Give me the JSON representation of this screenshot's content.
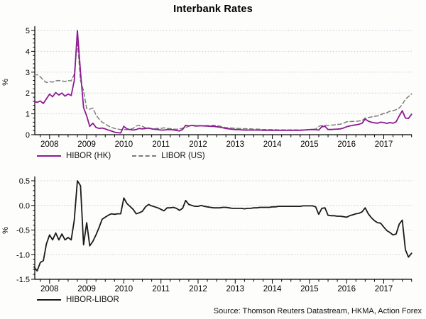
{
  "title": "Interbank Rates",
  "source": "Source: Thomson Reuters Datastream, HKMA, Action Forex",
  "colors": {
    "hibor": "#8C1B92",
    "libor": "#7d7d7d",
    "spread": "#1a1a1a",
    "grid": "#c7ccda",
    "axis": "#000000"
  },
  "legend_top": [
    {
      "label": "HIBOR (HK)",
      "style": "solid",
      "color": "#8C1B92"
    },
    {
      "label": "LIBOR (US)",
      "style": "dashed",
      "color": "#7d7d7d"
    }
  ],
  "legend_bottom": [
    {
      "label": "HIBOR-LIBOR",
      "style": "solid",
      "color": "#1a1a1a"
    }
  ],
  "chart_data": [
    {
      "type": "line",
      "panel": "top",
      "ylabel": "%",
      "ylim": [
        0,
        5
      ],
      "yticks": [
        0,
        1,
        2,
        3,
        4,
        5
      ],
      "ytick_decimals": 0,
      "xticks": [
        2008,
        2009,
        2010,
        2011,
        2012,
        2013,
        2014,
        2015,
        2016,
        2017
      ],
      "grid": "dotted-horizontal",
      "legend_position": "bottom-left",
      "x_start": 2007.583,
      "x_step": 0.08333,
      "series": [
        {
          "name": "HIBOR (HK)",
          "style": "solid",
          "color": "#8C1B92",
          "values": [
            1.6,
            1.55,
            1.62,
            1.5,
            1.72,
            1.95,
            1.82,
            2.02,
            1.9,
            2.0,
            1.85,
            1.95,
            1.88,
            2.6,
            5.0,
            3.0,
            1.3,
            0.9,
            0.4,
            0.55,
            0.35,
            0.3,
            0.32,
            0.28,
            0.22,
            0.18,
            0.12,
            0.1,
            0.08,
            0.4,
            0.28,
            0.24,
            0.22,
            0.25,
            0.3,
            0.28,
            0.3,
            0.32,
            0.28,
            0.26,
            0.25,
            0.22,
            0.22,
            0.25,
            0.24,
            0.23,
            0.2,
            0.18,
            0.25,
            0.45,
            0.42,
            0.45,
            0.42,
            0.42,
            0.43,
            0.42,
            0.41,
            0.4,
            0.4,
            0.38,
            0.36,
            0.33,
            0.3,
            0.28,
            0.26,
            0.25,
            0.24,
            0.23,
            0.22,
            0.22,
            0.22,
            0.22,
            0.22,
            0.22,
            0.21,
            0.21,
            0.21,
            0.21,
            0.21,
            0.21,
            0.21,
            0.21,
            0.21,
            0.21,
            0.21,
            0.21,
            0.21,
            0.22,
            0.23,
            0.24,
            0.25,
            0.24,
            0.22,
            0.38,
            0.4,
            0.25,
            0.25,
            0.26,
            0.27,
            0.28,
            0.32,
            0.38,
            0.42,
            0.45,
            0.47,
            0.5,
            0.55,
            0.75,
            0.65,
            0.6,
            0.57,
            0.55,
            0.6,
            0.58,
            0.54,
            0.58,
            0.55,
            0.62,
            0.9,
            1.15,
            0.8,
            0.78,
            0.98
          ]
        },
        {
          "name": "LIBOR (US)",
          "style": "dashed",
          "color": "#7d7d7d",
          "values": [
            2.85,
            2.88,
            2.78,
            2.62,
            2.5,
            2.55,
            2.52,
            2.58,
            2.6,
            2.58,
            2.55,
            2.6,
            2.58,
            2.9,
            4.5,
            2.6,
            2.1,
            1.25,
            1.22,
            1.28,
            0.95,
            0.75,
            0.6,
            0.52,
            0.42,
            0.35,
            0.3,
            0.27,
            0.25,
            0.25,
            0.24,
            0.26,
            0.3,
            0.42,
            0.45,
            0.4,
            0.33,
            0.3,
            0.29,
            0.29,
            0.3,
            0.3,
            0.33,
            0.3,
            0.29,
            0.27,
            0.26,
            0.28,
            0.31,
            0.35,
            0.4,
            0.45,
            0.44,
            0.44,
            0.43,
            0.44,
            0.44,
            0.44,
            0.45,
            0.43,
            0.41,
            0.37,
            0.34,
            0.33,
            0.32,
            0.31,
            0.3,
            0.29,
            0.29,
            0.28,
            0.28,
            0.27,
            0.27,
            0.26,
            0.25,
            0.25,
            0.25,
            0.24,
            0.24,
            0.23,
            0.23,
            0.23,
            0.23,
            0.23,
            0.23,
            0.23,
            0.23,
            0.23,
            0.24,
            0.25,
            0.26,
            0.27,
            0.4,
            0.44,
            0.45,
            0.45,
            0.46,
            0.47,
            0.49,
            0.5,
            0.55,
            0.62,
            0.63,
            0.64,
            0.64,
            0.66,
            0.68,
            0.8,
            0.82,
            0.85,
            0.88,
            0.9,
            0.96,
            1.02,
            1.05,
            1.13,
            1.15,
            1.2,
            1.28,
            1.45,
            1.7,
            1.83,
            1.95
          ]
        }
      ]
    },
    {
      "type": "line",
      "panel": "bottom",
      "ylabel": "%",
      "ylim": [
        -1.5,
        0.5
      ],
      "yticks": [
        0.5,
        0.0,
        -0.5,
        -1.0,
        -1.5
      ],
      "ytick_decimals": 1,
      "xticks": [
        2008,
        2009,
        2010,
        2011,
        2012,
        2013,
        2014,
        2015,
        2016,
        2017
      ],
      "grid": "dotted-horizontal",
      "legend_position": "bottom-left",
      "x_start": 2007.583,
      "x_step": 0.08333,
      "series": [
        {
          "name": "HIBOR-LIBOR",
          "style": "solid",
          "color": "#1a1a1a",
          "values": [
            -1.25,
            -1.33,
            -1.16,
            -1.12,
            -0.78,
            -0.6,
            -0.7,
            -0.56,
            -0.7,
            -0.58,
            -0.7,
            -0.65,
            -0.7,
            -0.3,
            0.5,
            0.4,
            -0.8,
            -0.35,
            -0.82,
            -0.73,
            -0.6,
            -0.45,
            -0.28,
            -0.24,
            -0.2,
            -0.17,
            -0.18,
            -0.17,
            -0.17,
            0.15,
            0.04,
            -0.02,
            -0.08,
            -0.17,
            -0.15,
            -0.12,
            -0.03,
            0.02,
            -0.01,
            -0.03,
            -0.05,
            -0.08,
            -0.11,
            -0.05,
            -0.05,
            -0.04,
            -0.06,
            -0.1,
            -0.06,
            0.1,
            0.02,
            0.0,
            -0.02,
            -0.02,
            0.0,
            -0.02,
            -0.03,
            -0.04,
            -0.05,
            -0.05,
            -0.05,
            -0.04,
            -0.04,
            -0.05,
            -0.06,
            -0.06,
            -0.06,
            -0.06,
            -0.07,
            -0.06,
            -0.06,
            -0.05,
            -0.05,
            -0.04,
            -0.04,
            -0.04,
            -0.04,
            -0.03,
            -0.03,
            -0.02,
            -0.02,
            -0.02,
            -0.02,
            -0.02,
            -0.02,
            -0.02,
            -0.02,
            -0.01,
            -0.01,
            -0.01,
            -0.01,
            -0.03,
            -0.18,
            -0.06,
            -0.05,
            -0.2,
            -0.21,
            -0.21,
            -0.22,
            -0.22,
            -0.23,
            -0.24,
            -0.21,
            -0.19,
            -0.17,
            -0.16,
            -0.13,
            -0.05,
            -0.17,
            -0.25,
            -0.31,
            -0.35,
            -0.36,
            -0.44,
            -0.51,
            -0.55,
            -0.6,
            -0.58,
            -0.38,
            -0.3,
            -0.9,
            -1.05,
            -0.97
          ]
        }
      ]
    }
  ]
}
